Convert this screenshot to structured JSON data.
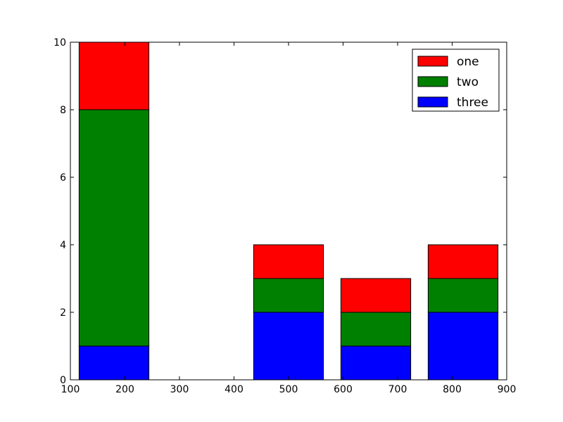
{
  "chart_data": {
    "type": "bar",
    "stacked": true,
    "title": "",
    "xlabel": "",
    "ylabel": "",
    "xlim": [
      100,
      900
    ],
    "ylim": [
      0,
      10
    ],
    "xticks": [
      100,
      200,
      300,
      400,
      500,
      600,
      700,
      800,
      900
    ],
    "yticks": [
      0,
      2,
      4,
      6,
      8,
      10
    ],
    "grid": false,
    "legend": "top-right",
    "bar_width": 128,
    "x": [
      180,
      340,
      500,
      660,
      820
    ],
    "series": [
      {
        "name": "three",
        "color": "#0000ff",
        "values": [
          1,
          0,
          2,
          1,
          2
        ]
      },
      {
        "name": "two",
        "color": "#008000",
        "values": [
          7,
          0,
          1,
          1,
          1
        ]
      },
      {
        "name": "one",
        "color": "#ff0000",
        "values": [
          2,
          0,
          1,
          1,
          1
        ]
      }
    ],
    "legend_order": [
      "one",
      "two",
      "three"
    ]
  }
}
